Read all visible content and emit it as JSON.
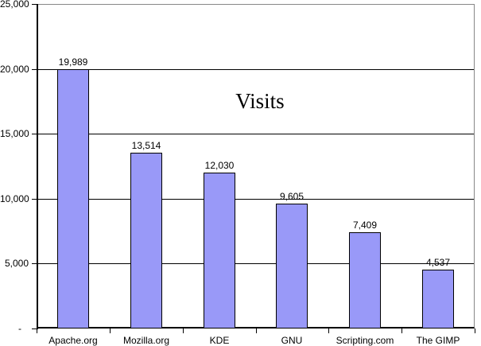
{
  "chart_data": {
    "type": "bar",
    "title": "Visits",
    "categories": [
      "Apache.org",
      "Mozilla.org",
      "KDE",
      "GNU",
      "Scripting.com",
      "The GIMP"
    ],
    "values": [
      19989,
      13514,
      12030,
      9605,
      7409,
      4537
    ],
    "value_labels": [
      "19,989",
      "13,514",
      "12,030",
      "9,605",
      "7,409",
      "4,537"
    ],
    "y_axis": {
      "min": 0,
      "max": 25000,
      "tick_interval": 5000,
      "tick_values": [
        0,
        5000,
        10000,
        15000,
        20000,
        25000
      ],
      "tick_labels": [
        "-",
        "5,000",
        "10,000",
        "15,000",
        "20,000",
        "25,000"
      ]
    },
    "grid": "horizontal-black-lines",
    "legend": "none",
    "colors": {
      "bar_fill": "#9999F8",
      "bar_border": "#000000",
      "gridline": "#000000",
      "axis": "#000000",
      "plot_outer_border": "#888888",
      "background": "#FFFFFF",
      "text": "#000000"
    }
  }
}
